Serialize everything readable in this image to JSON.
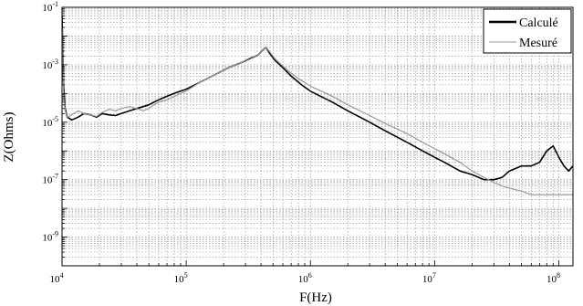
{
  "chart_data": {
    "type": "line",
    "title": "",
    "xlabel": "F(Hz)",
    "ylabel": "Z(Ohms)",
    "xscale": "log",
    "yscale": "log",
    "xlim": [
      10000,
      130000000
    ],
    "ylim": [
      1e-10,
      0.1
    ],
    "grid": true,
    "legend_position": "top-right",
    "x_ticks": [
      {
        "base": "10",
        "exp": "4"
      },
      {
        "base": "10",
        "exp": "5"
      },
      {
        "base": "10",
        "exp": "6"
      },
      {
        "base": "10",
        "exp": "7"
      },
      {
        "base": "10",
        "exp": "8"
      }
    ],
    "y_ticks": [
      {
        "base": "10",
        "exp": "-1"
      },
      {
        "base": "10",
        "exp": "-3"
      },
      {
        "base": "10",
        "exp": "-5"
      },
      {
        "base": "10",
        "exp": "-7"
      },
      {
        "base": "10",
        "exp": "-9"
      }
    ],
    "series": [
      {
        "name": "Calculé",
        "color": "#000000",
        "x": [
          10000,
          10300,
          10600,
          11000,
          12000,
          13500,
          15000,
          17000,
          19000,
          21000,
          24000,
          27000,
          30000,
          35000,
          40000,
          45000,
          50000,
          55000,
          60000,
          70000,
          80000,
          90000,
          100000,
          130000,
          170000,
          220000,
          280000,
          330000,
          380000,
          420000,
          440000,
          470000,
          520000,
          600000,
          700000,
          850000,
          1000000,
          1500000,
          2000000,
          3000000,
          4000000,
          6000000,
          8000000,
          10000000,
          12000000,
          16000000,
          20000000,
          25000000,
          30000000,
          35000000,
          40000000,
          50000000,
          60000000,
          70000000,
          80000000,
          90000000,
          100000000,
          110000000,
          120000000,
          130000000
        ],
        "y": [
          0.05,
          0.0002,
          3e-05,
          1.5e-05,
          1.2e-05,
          1.5e-05,
          2e-05,
          1.8e-05,
          1.5e-05,
          2e-05,
          1.8e-05,
          1.7e-05,
          2e-05,
          2.5e-05,
          3e-05,
          3.5e-05,
          4e-05,
          5e-05,
          6e-05,
          8e-05,
          0.0001,
          0.00012,
          0.00014,
          0.00025,
          0.00045,
          0.0008,
          0.0012,
          0.0017,
          0.0022,
          0.0035,
          0.004,
          0.0025,
          0.0014,
          0.0008,
          0.0004,
          0.0002,
          0.00012,
          5e-05,
          2.5e-05,
          1e-05,
          5e-06,
          2e-06,
          1e-06,
          6e-07,
          4e-07,
          2e-07,
          1.5e-07,
          1e-07,
          1e-07,
          1.2e-07,
          2e-07,
          3e-07,
          3e-07,
          4e-07,
          1e-06,
          1.5e-06,
          6e-07,
          3e-07,
          2e-07,
          3e-07
        ]
      },
      {
        "name": "Mesuré",
        "color": "#999999",
        "x": [
          10000,
          10300,
          10600,
          11000,
          12000,
          13500,
          15000,
          17000,
          19000,
          21000,
          24000,
          27000,
          30000,
          35000,
          40000,
          45000,
          50000,
          55000,
          60000,
          70000,
          80000,
          90000,
          100000,
          130000,
          170000,
          220000,
          280000,
          330000,
          380000,
          420000,
          440000,
          470000,
          520000,
          600000,
          700000,
          850000,
          1000000,
          1500000,
          2000000,
          3000000,
          4000000,
          6000000,
          8000000,
          10000000,
          12000000,
          16000000,
          20000000,
          25000000,
          30000000,
          35000000,
          40000000,
          50000000,
          60000000,
          70000000,
          80000000,
          90000000,
          100000000,
          110000000,
          120000000,
          130000000
        ],
        "y": [
          0.04,
          0.00012,
          2.5e-05,
          1.5e-05,
          1.8e-05,
          2.5e-05,
          2e-05,
          1.8e-05,
          1.6e-05,
          2.2e-05,
          2.8e-05,
          2.5e-05,
          3e-05,
          3.5e-05,
          3e-05,
          2.5e-05,
          3e-05,
          4e-05,
          5e-05,
          6e-05,
          8e-05,
          0.0001,
          0.00012,
          0.00025,
          0.00045,
          0.0008,
          0.0012,
          0.0018,
          0.0022,
          0.0035,
          0.004,
          0.0028,
          0.0016,
          0.0009,
          0.0005,
          0.00028,
          0.00018,
          8e-05,
          4e-05,
          1.7e-05,
          9e-06,
          4e-06,
          2e-06,
          1.2e-06,
          8e-07,
          4e-07,
          2e-07,
          1.2e-07,
          8e-08,
          6e-08,
          5e-08,
          4e-08,
          3e-08,
          3e-08,
          3e-08,
          3e-08,
          3e-08,
          3e-08,
          3e-08,
          3e-08
        ]
      }
    ]
  }
}
